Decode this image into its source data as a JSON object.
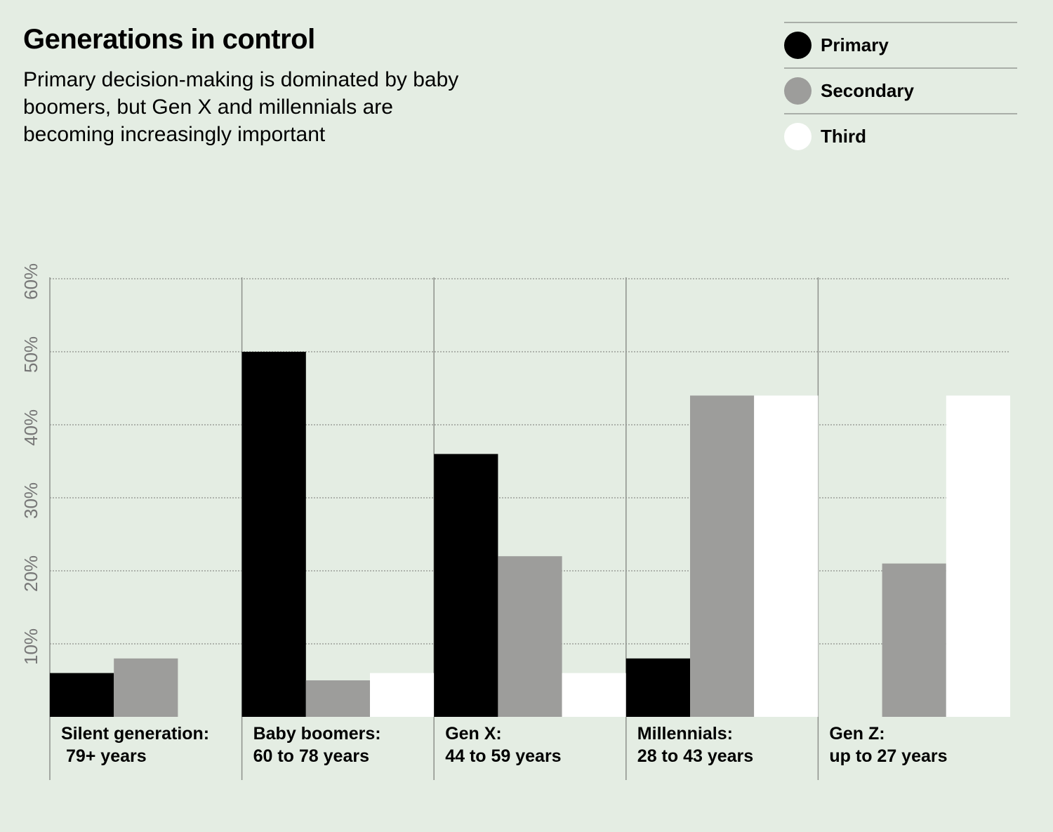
{
  "title": "Generations in control",
  "subtitle": "Primary decision-making is dominated by baby boomers, but Gen X and millennials are becoming increasingly important",
  "legend": [
    {
      "label": "Primary",
      "color": "#000000"
    },
    {
      "label": "Secondary",
      "color": "#9d9d9b"
    },
    {
      "label": "Third",
      "color": "#ffffff"
    }
  ],
  "chart_data": {
    "type": "bar",
    "title": "Generations in control",
    "subtitle": "Primary decision-making is dominated by baby boomers, but Gen X and millennials are becoming increasingly important",
    "categories": [
      {
        "line1": "Silent generation:",
        "line2": " 79+ years"
      },
      {
        "line1": "Baby boomers:",
        "line2": "60 to 78 years"
      },
      {
        "line1": "Gen X:",
        "line2": "44 to 59 years"
      },
      {
        "line1": "Millennials:",
        "line2": "28 to 43 years"
      },
      {
        "line1": "Gen Z:",
        "line2": "up to 27 years"
      }
    ],
    "series": [
      {
        "name": "Primary",
        "color": "#000000",
        "values": [
          6,
          50,
          36,
          8,
          0
        ]
      },
      {
        "name": "Secondary",
        "color": "#9d9d9b",
        "values": [
          8,
          5,
          22,
          44,
          21
        ]
      },
      {
        "name": "Third",
        "color": "#ffffff",
        "values": [
          0,
          6,
          6,
          44,
          44
        ]
      }
    ],
    "yticks": [
      "10%",
      "20%",
      "30%",
      "40%",
      "50%",
      "60%"
    ],
    "ylim": [
      0,
      60
    ],
    "grid": true,
    "legend_position": "top-right"
  }
}
